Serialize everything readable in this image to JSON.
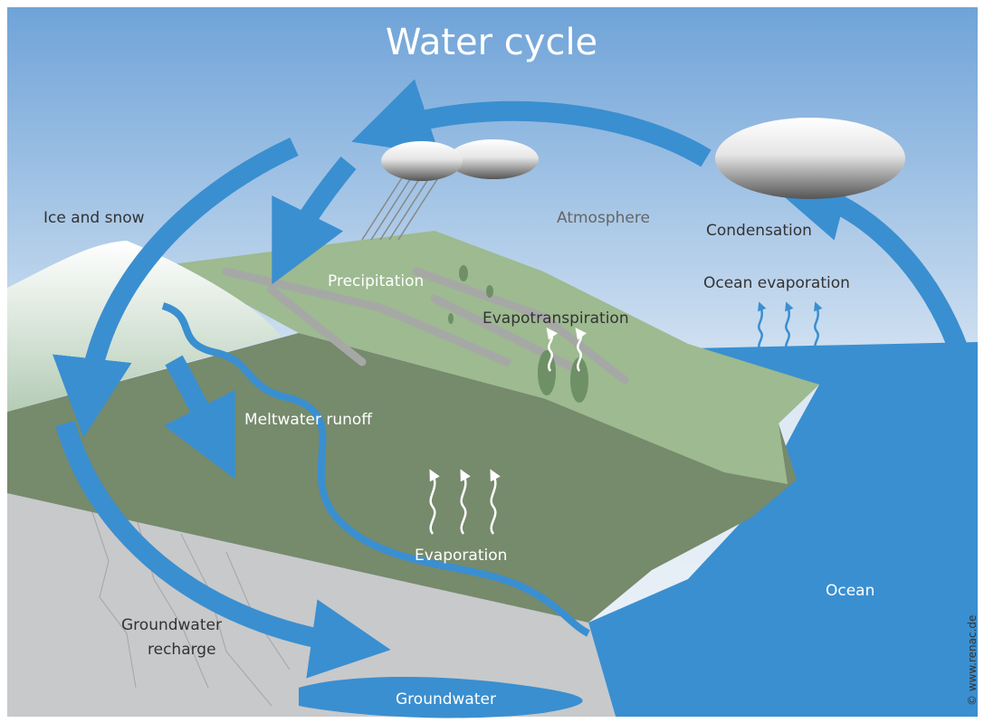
{
  "title": "Water cycle",
  "labels": {
    "ice_and_snow": "Ice and snow",
    "atmosphere": "Atmosphere",
    "condensation": "Condensation",
    "precipitation": "Precipitation",
    "ocean_evaporation": "Ocean evaporation",
    "evapotranspiration": "Evapotranspiration",
    "meltwater_runoff": "Meltwater runoff",
    "evaporation": "Evaporation",
    "ocean": "Ocean",
    "groundwater_recharge": [
      "Groundwater",
      "recharge"
    ],
    "groundwater": "Groundwater"
  },
  "copyright": "© www.renac.de"
}
